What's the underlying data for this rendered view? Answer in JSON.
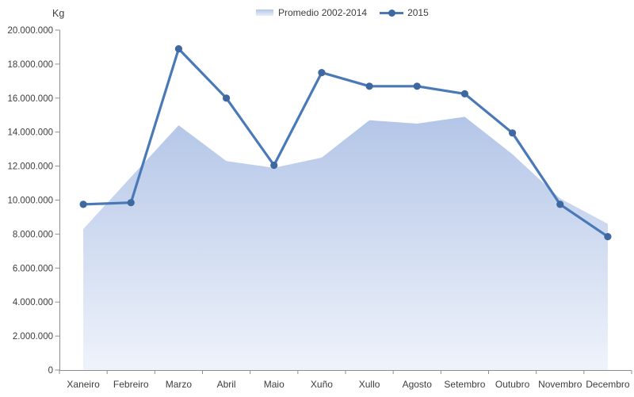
{
  "unit_label": "Kg",
  "legend": {
    "items": [
      {
        "label": "Promedio 2002-2014",
        "swatch": "area-gradient-swatch"
      },
      {
        "label": "2015",
        "swatch": "line-marker-swatch"
      }
    ]
  },
  "colors": {
    "area_top": "#b3c5e7",
    "area_bottom": "#eff3fb",
    "line": "#4a79b8",
    "marker": "#3f68a0",
    "axis": "#8e8e8e",
    "text": "#3d3d3d"
  },
  "chart_data": {
    "type": "area",
    "subtype": "area + line combo",
    "categories": [
      "Xaneiro",
      "Febreiro",
      "Marzo",
      "Abril",
      "Maio",
      "Xuño",
      "Xullo",
      "Agosto",
      "Setembro",
      "Outubro",
      "Novembro",
      "Decembro"
    ],
    "series": [
      {
        "name": "Promedio 2002-2014",
        "type": "area",
        "values": [
          8300000,
          11350000,
          14400000,
          12300000,
          11900000,
          12500000,
          14700000,
          14500000,
          14900000,
          12700000,
          10100000,
          8600000
        ]
      },
      {
        "name": "2015",
        "type": "line",
        "values": [
          9750000,
          9850000,
          18900000,
          16000000,
          12050000,
          17500000,
          16700000,
          16700000,
          16250000,
          13950000,
          9750000,
          7850000
        ]
      }
    ],
    "title": "",
    "xlabel": "",
    "ylabel": "Kg",
    "ylim": [
      0,
      20000000
    ],
    "ytick_step": 2000000,
    "ytick_labels": [
      "0",
      "2.000.000",
      "4.000.000",
      "6.000.000",
      "8.000.000",
      "10.000.000",
      "12.000.000",
      "14.000.000",
      "16.000.000",
      "18.000.000",
      "20.000.000"
    ],
    "grid": false,
    "legend_position": "top-center"
  }
}
